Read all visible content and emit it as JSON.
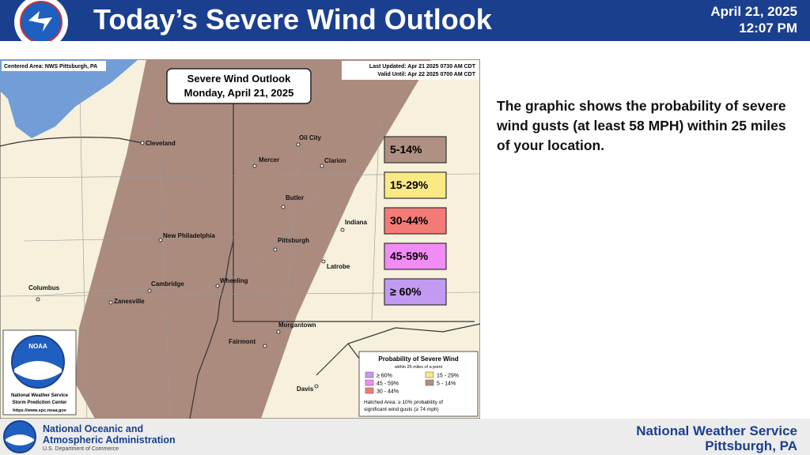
{
  "header": {
    "title": "Today’s Severe Wind Outlook",
    "date": "April 21, 2025",
    "time": "12:07 PM"
  },
  "map": {
    "centered_area": "Centered Area: NWS Pittsburgh, PA",
    "last_updated": "Last Updated: Apr 21 2025 0730 AM CDT",
    "valid_until": "Valid Until: Apr 22 2025 0700 AM CDT",
    "outlook_title": "Severe Wind Outlook",
    "outlook_date": "Monday, April 21, 2025",
    "cities": [
      "Cleveland",
      "Oil City",
      "Mercer",
      "Clarion",
      "Butler",
      "Indiana",
      "Pittsburgh",
      "Latrobe",
      "New Philadelphia",
      "Cambridge",
      "Wheeling",
      "Columbus",
      "Zanesville",
      "Morgantown",
      "Fairmont",
      "Davis"
    ],
    "categories": [
      {
        "label": "5-14%",
        "color": "#b09082"
      },
      {
        "label": "15-29%",
        "color": "#fbe983"
      },
      {
        "label": "30-44%",
        "color": "#f47a76"
      },
      {
        "label": "45-59%",
        "color": "#f18cf4"
      },
      {
        "label": "≥ 60%",
        "color": "#c39af2"
      }
    ],
    "legend": {
      "title": "Probability of Severe Wind",
      "subtitle": "within 25 miles of a point",
      "items": [
        {
          "label": "≥ 60%",
          "color": "#c39af2"
        },
        {
          "label": "15 - 29%",
          "color": "#fbe983"
        },
        {
          "label": "45 - 59%",
          "color": "#f18cf4"
        },
        {
          "label": "5 - 14%",
          "color": "#b09082"
        },
        {
          "label": "30 - 44%",
          "color": "#f47a76"
        }
      ],
      "hatched_note_1": "Hatched Area: ≥ 10% probability of",
      "hatched_note_2": "significant wind gusts (≥ 74 mph)"
    },
    "spc_box": {
      "line1": "National Weather Service",
      "line2": "Storm Prediction Center",
      "url": "https://www.spc.noaa.gov",
      "logo": "NOAA"
    }
  },
  "description": "The graphic shows the probability of severe wind gusts (at least 58 MPH) within 25 miles of your location.",
  "footer": {
    "agency_line1": "National Oceanic and",
    "agency_line2": "Atmospheric Administration",
    "department": "U.S. Department of Commerce",
    "office": "National Weather Service",
    "location": "Pittsburgh, PA"
  }
}
